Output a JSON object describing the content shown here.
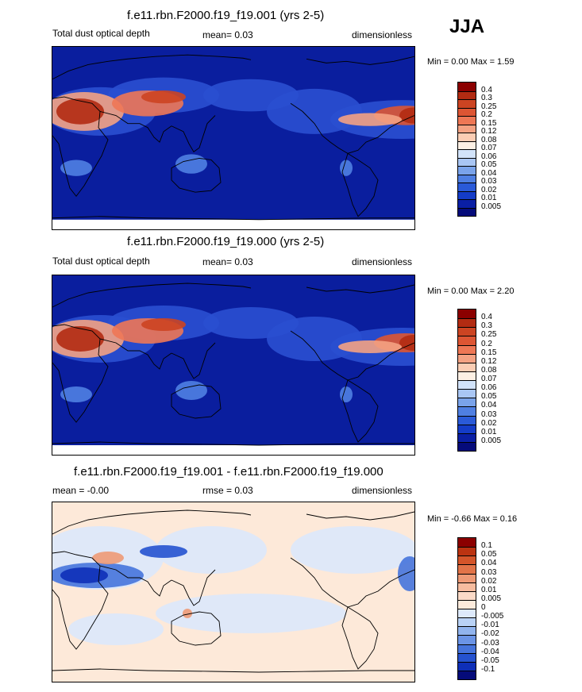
{
  "season": "JJA",
  "panels": [
    {
      "title": "f.e11.rbn.F2000.f19_f19.001 (yrs 2-5)",
      "left": "Total dust optical depth",
      "center": "mean=   0.03",
      "right": "dimensionless",
      "minmax": "Min =   0.00 Max =   1.59",
      "colorbar": {
        "labels": [
          "0.4",
          "0.3",
          "0.25",
          "0.2",
          "0.15",
          "0.12",
          "0.08",
          "0.07",
          "0.06",
          "0.05",
          "0.04",
          "0.03",
          "0.02",
          "0.01",
          "0.005"
        ],
        "colors": [
          "#8b0000",
          "#b22b12",
          "#cc4422",
          "#dd5533",
          "#ee7755",
          "#f4a283",
          "#fbcdb4",
          "#fdf0e4",
          "#d2e3fa",
          "#a9c6f4",
          "#7aa3ea",
          "#4f7fe2",
          "#2a5ad8",
          "#143cc8",
          "#0a1fa5",
          "#050b7a"
        ]
      }
    },
    {
      "title": "f.e11.rbn.F2000.f19_f19.000 (yrs 2-5)",
      "left": "Total dust optical depth",
      "center": "mean=  0.03",
      "right": "dimensionless",
      "minmax": "Min =   0.00 Max =   2.20",
      "colorbar": {
        "labels": [
          "0.4",
          "0.3",
          "0.25",
          "0.2",
          "0.15",
          "0.12",
          "0.08",
          "0.07",
          "0.06",
          "0.05",
          "0.04",
          "0.03",
          "0.02",
          "0.01",
          "0.005"
        ],
        "colors": [
          "#8b0000",
          "#b22b12",
          "#cc4422",
          "#dd5533",
          "#ee7755",
          "#f4a283",
          "#fbcdb4",
          "#fdf0e4",
          "#d2e3fa",
          "#a9c6f4",
          "#7aa3ea",
          "#4f7fe2",
          "#2a5ad8",
          "#143cc8",
          "#0a1fa5",
          "#050b7a"
        ]
      }
    },
    {
      "title": "f.e11.rbn.F2000.f19_f19.001 - f.e11.rbn.F2000.f19_f19.000",
      "left": "mean = -0.00",
      "center": "rmse =  0.03",
      "right": "dimensionless",
      "minmax": "Min =  -0.66 Max =   0.16",
      "colorbar": {
        "labels": [
          "0.1",
          "0.05",
          "0.04",
          "0.03",
          "0.02",
          "0.01",
          "0.005",
          "0",
          "-0.005",
          "-0.01",
          "-0.02",
          "-0.03",
          "-0.04",
          "-0.05",
          "-0.1"
        ],
        "colors": [
          "#8b0000",
          "#bb3311",
          "#d4552a",
          "#e27449",
          "#ee9a76",
          "#f6bc9f",
          "#fbdac7",
          "#fdebdc",
          "#dde9fb",
          "#b9d2f6",
          "#91b4ee",
          "#6b94e6",
          "#4674dc",
          "#2552cf",
          "#0e2fb8",
          "#050b7a"
        ]
      }
    }
  ]
}
